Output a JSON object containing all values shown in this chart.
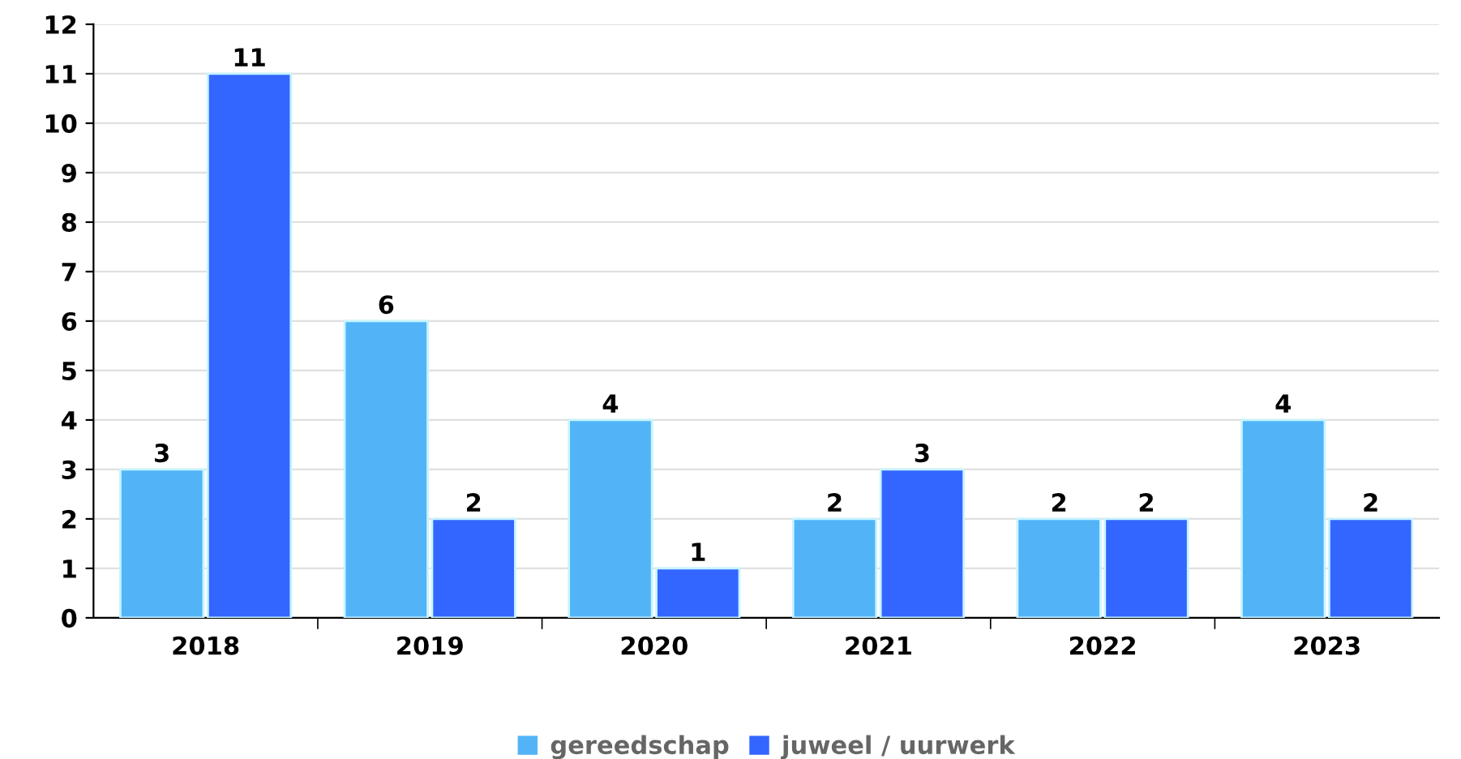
{
  "chart_data": {
    "type": "bar",
    "categories": [
      "2018",
      "2019",
      "2020",
      "2021",
      "2022",
      "2023"
    ],
    "series": [
      {
        "name": "gereedschap",
        "color": "#52b4f7",
        "values": [
          3,
          6,
          4,
          2,
          2,
          4
        ]
      },
      {
        "name": "juweel / uurwerk",
        "color": "#3366ff",
        "values": [
          11,
          2,
          1,
          3,
          2,
          2
        ]
      }
    ],
    "ylim": [
      0,
      12
    ],
    "yticks": [
      0,
      1,
      2,
      3,
      4,
      5,
      6,
      7,
      8,
      9,
      10,
      11,
      12
    ],
    "grid": "y",
    "legend": "bottom",
    "data_labels": true
  }
}
